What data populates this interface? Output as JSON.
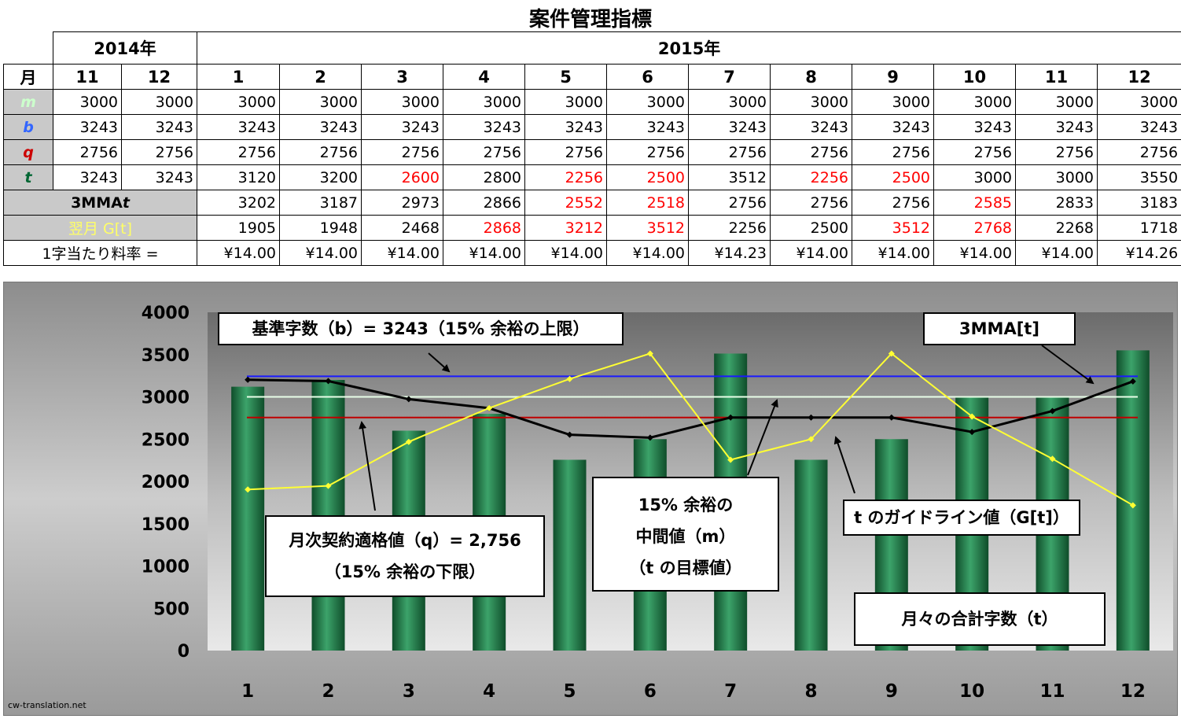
{
  "title": "案件管理指標",
  "table": {
    "year_2014": "2014年",
    "year_2015": "2015年",
    "month_header": "月",
    "months": [
      "11",
      "12",
      "1",
      "2",
      "3",
      "4",
      "5",
      "6",
      "7",
      "8",
      "9",
      "10",
      "11",
      "12"
    ],
    "rows": [
      {
        "label": "m",
        "color": "#ccffcc",
        "values": [
          "3000",
          "3000",
          "3000",
          "3000",
          "3000",
          "3000",
          "3000",
          "3000",
          "3000",
          "3000",
          "3000",
          "3000",
          "3000",
          "3000"
        ],
        "red": []
      },
      {
        "label": "b",
        "color": "#3366ff",
        "values": [
          "3243",
          "3243",
          "3243",
          "3243",
          "3243",
          "3243",
          "3243",
          "3243",
          "3243",
          "3243",
          "3243",
          "3243",
          "3243",
          "3243"
        ],
        "red": []
      },
      {
        "label": "q",
        "color": "#cc0000",
        "values": [
          "2756",
          "2756",
          "2756",
          "2756",
          "2756",
          "2756",
          "2756",
          "2756",
          "2756",
          "2756",
          "2756",
          "2756",
          "2756",
          "2756"
        ],
        "red": []
      },
      {
        "label": "t",
        "color": "#006633",
        "values": [
          "3243",
          "3243",
          "3120",
          "3200",
          "2600",
          "2800",
          "2256",
          "2500",
          "3512",
          "2256",
          "2500",
          "3000",
          "3000",
          "3550"
        ],
        "red": [
          4,
          6,
          7,
          9,
          10
        ]
      }
    ],
    "mma_label": "3MMA",
    "mma_label_var": "t",
    "mma_values": [
      "3202",
      "3187",
      "2973",
      "2866",
      "2552",
      "2518",
      "2756",
      "2756",
      "2756",
      "2585",
      "2833",
      "3183"
    ],
    "mma_red": [
      4,
      5,
      9
    ],
    "g_label": "翌月 G[t]",
    "g_values": [
      "1905",
      "1948",
      "2468",
      "2868",
      "3212",
      "3512",
      "2256",
      "2500",
      "3512",
      "2768",
      "2268",
      "1718"
    ],
    "g_red": [
      3,
      4,
      5,
      8,
      9
    ],
    "rate_label": "1字当たり料率 =",
    "rate_values": [
      "¥14.00",
      "¥14.00",
      "¥14.00",
      "¥14.00",
      "¥14.00",
      "¥14.00",
      "¥14.23",
      "¥14.00",
      "¥14.00",
      "¥14.00",
      "¥14.00",
      "¥14.26"
    ]
  },
  "chart_data": {
    "type": "bar",
    "categories": [
      "1",
      "2",
      "3",
      "4",
      "5",
      "6",
      "7",
      "8",
      "9",
      "10",
      "11",
      "12"
    ],
    "series": [
      {
        "name": "月々の合計字数（t）",
        "type": "bar",
        "color": "#1f7a45",
        "values": [
          3120,
          3200,
          2600,
          2800,
          2256,
          2500,
          3512,
          2256,
          2500,
          3000,
          3000,
          3550
        ]
      },
      {
        "name": "3MMA[t]",
        "type": "line",
        "color": "#000000",
        "values": [
          3202,
          3187,
          2973,
          2866,
          2552,
          2518,
          2756,
          2756,
          2756,
          2585,
          2833,
          3183
        ]
      },
      {
        "name": "t のガイドライン値（G[t]）",
        "type": "line",
        "color": "#ffff33",
        "values": [
          1905,
          1948,
          2468,
          2868,
          3212,
          3512,
          2256,
          2500,
          3512,
          2768,
          2268,
          1718
        ]
      },
      {
        "name": "基準字数（b）",
        "type": "hline",
        "color": "#1a1aff",
        "value": 3243
      },
      {
        "name": "中間値（m）",
        "type": "hline",
        "color": "#e8ffe8",
        "value": 3000
      },
      {
        "name": "月次契約適格値（q）",
        "type": "hline",
        "color": "#c00000",
        "value": 2756
      }
    ],
    "ylim": [
      0,
      4000
    ],
    "yticks": [
      "0",
      "500",
      "1000",
      "1500",
      "2000",
      "2500",
      "3000",
      "3500",
      "4000"
    ],
    "grid": false,
    "annotations": [
      "基準字数（b）= 3243（15% 余裕の上限）",
      "3MMA[t]",
      "15% 余裕の",
      "中間値（m）",
      "（t の目標値）",
      "t のガイドライン値（G[t]）",
      "月次契約適格値（q）= 2,756",
      "（15% 余裕の下限）",
      "月々の合計字数（t）"
    ]
  },
  "footer": "cw-translation.net"
}
